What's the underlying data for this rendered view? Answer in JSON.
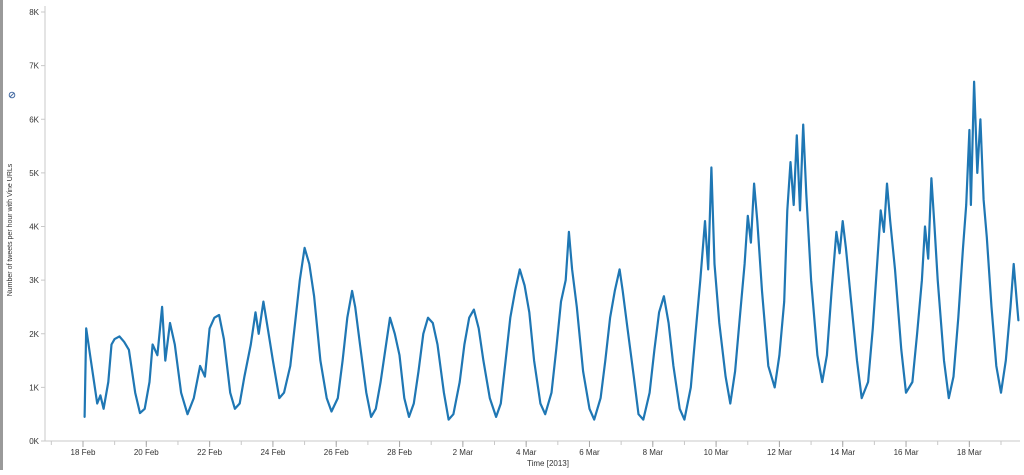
{
  "chart_data": {
    "type": "line",
    "xlabel": "Time [2013]",
    "ylabel": "Number of tweets per hour with Vine URLs",
    "ylim": [
      0,
      8000
    ],
    "y_ticks": [
      {
        "value": 0,
        "label": "0K"
      },
      {
        "value": 1000,
        "label": "1K"
      },
      {
        "value": 2000,
        "label": "2K"
      },
      {
        "value": 3000,
        "label": "3K"
      },
      {
        "value": 4000,
        "label": "4K"
      },
      {
        "value": 5000,
        "label": "5K"
      },
      {
        "value": 6000,
        "label": "6K"
      },
      {
        "value": 7000,
        "label": "7K"
      },
      {
        "value": 8000,
        "label": "8K"
      }
    ],
    "xlim_days": [
      -1.2,
      29.6
    ],
    "x_ticks": [
      {
        "day": 0,
        "label": "18 Feb"
      },
      {
        "day": 2,
        "label": "20 Feb"
      },
      {
        "day": 4,
        "label": "22 Feb"
      },
      {
        "day": 6,
        "label": "24 Feb"
      },
      {
        "day": 8,
        "label": "26 Feb"
      },
      {
        "day": 10,
        "label": "28 Feb"
      },
      {
        "day": 12,
        "label": "2 Mar"
      },
      {
        "day": 14,
        "label": "4 Mar"
      },
      {
        "day": 16,
        "label": "6 Mar"
      },
      {
        "day": 18,
        "label": "8 Mar"
      },
      {
        "day": 20,
        "label": "10 Mar"
      },
      {
        "day": 22,
        "label": "12 Mar"
      },
      {
        "day": 24,
        "label": "14 Mar"
      },
      {
        "day": 26,
        "label": "16 Mar"
      },
      {
        "day": 28,
        "label": "18 Mar"
      }
    ],
    "series_color": "#1f77b4",
    "grid": false,
    "series": [
      {
        "points": [
          [
            0.05,
            450
          ],
          [
            0.1,
            2100
          ],
          [
            0.25,
            1500
          ],
          [
            0.45,
            700
          ],
          [
            0.55,
            850
          ],
          [
            0.65,
            600
          ],
          [
            0.8,
            1100
          ],
          [
            0.9,
            1800
          ],
          [
            1.0,
            1900
          ],
          [
            1.15,
            1950
          ],
          [
            1.3,
            1850
          ],
          [
            1.45,
            1700
          ],
          [
            1.65,
            900
          ],
          [
            1.8,
            520
          ],
          [
            1.95,
            600
          ],
          [
            2.1,
            1100
          ],
          [
            2.2,
            1800
          ],
          [
            2.35,
            1600
          ],
          [
            2.5,
            2500
          ],
          [
            2.6,
            1500
          ],
          [
            2.75,
            2200
          ],
          [
            2.9,
            1800
          ],
          [
            3.1,
            900
          ],
          [
            3.3,
            500
          ],
          [
            3.5,
            800
          ],
          [
            3.7,
            1400
          ],
          [
            3.85,
            1200
          ],
          [
            4.0,
            2100
          ],
          [
            4.15,
            2300
          ],
          [
            4.3,
            2350
          ],
          [
            4.45,
            1900
          ],
          [
            4.65,
            900
          ],
          [
            4.8,
            600
          ],
          [
            4.95,
            700
          ],
          [
            5.1,
            1200
          ],
          [
            5.3,
            1800
          ],
          [
            5.45,
            2400
          ],
          [
            5.55,
            2000
          ],
          [
            5.7,
            2600
          ],
          [
            5.85,
            2050
          ],
          [
            6.0,
            1500
          ],
          [
            6.2,
            800
          ],
          [
            6.35,
            900
          ],
          [
            6.55,
            1400
          ],
          [
            6.7,
            2200
          ],
          [
            6.85,
            3000
          ],
          [
            7.0,
            3600
          ],
          [
            7.15,
            3300
          ],
          [
            7.3,
            2700
          ],
          [
            7.5,
            1500
          ],
          [
            7.7,
            800
          ],
          [
            7.85,
            550
          ],
          [
            8.05,
            800
          ],
          [
            8.2,
            1500
          ],
          [
            8.35,
            2300
          ],
          [
            8.5,
            2800
          ],
          [
            8.6,
            2500
          ],
          [
            8.75,
            1800
          ],
          [
            8.95,
            900
          ],
          [
            9.1,
            450
          ],
          [
            9.25,
            600
          ],
          [
            9.4,
            1100
          ],
          [
            9.55,
            1700
          ],
          [
            9.7,
            2300
          ],
          [
            9.85,
            2000
          ],
          [
            10.0,
            1600
          ],
          [
            10.15,
            800
          ],
          [
            10.3,
            450
          ],
          [
            10.45,
            700
          ],
          [
            10.6,
            1300
          ],
          [
            10.75,
            2000
          ],
          [
            10.9,
            2300
          ],
          [
            11.05,
            2200
          ],
          [
            11.2,
            1800
          ],
          [
            11.4,
            900
          ],
          [
            11.55,
            400
          ],
          [
            11.7,
            500
          ],
          [
            11.9,
            1100
          ],
          [
            12.05,
            1800
          ],
          [
            12.2,
            2300
          ],
          [
            12.35,
            2450
          ],
          [
            12.5,
            2100
          ],
          [
            12.65,
            1500
          ],
          [
            12.85,
            800
          ],
          [
            13.05,
            450
          ],
          [
            13.2,
            700
          ],
          [
            13.35,
            1500
          ],
          [
            13.5,
            2300
          ],
          [
            13.65,
            2800
          ],
          [
            13.8,
            3200
          ],
          [
            13.95,
            2900
          ],
          [
            14.1,
            2400
          ],
          [
            14.25,
            1500
          ],
          [
            14.45,
            700
          ],
          [
            14.6,
            500
          ],
          [
            14.8,
            900
          ],
          [
            14.95,
            1700
          ],
          [
            15.1,
            2600
          ],
          [
            15.25,
            3000
          ],
          [
            15.35,
            3900
          ],
          [
            15.45,
            3200
          ],
          [
            15.6,
            2500
          ],
          [
            15.8,
            1300
          ],
          [
            16.0,
            600
          ],
          [
            16.15,
            400
          ],
          [
            16.35,
            800
          ],
          [
            16.5,
            1500
          ],
          [
            16.65,
            2300
          ],
          [
            16.8,
            2800
          ],
          [
            16.95,
            3200
          ],
          [
            17.05,
            2800
          ],
          [
            17.2,
            2100
          ],
          [
            17.4,
            1200
          ],
          [
            17.55,
            500
          ],
          [
            17.7,
            400
          ],
          [
            17.9,
            900
          ],
          [
            18.05,
            1700
          ],
          [
            18.2,
            2400
          ],
          [
            18.35,
            2700
          ],
          [
            18.5,
            2200
          ],
          [
            18.65,
            1400
          ],
          [
            18.85,
            600
          ],
          [
            19.0,
            400
          ],
          [
            19.2,
            1000
          ],
          [
            19.35,
            2000
          ],
          [
            19.5,
            3000
          ],
          [
            19.65,
            4100
          ],
          [
            19.75,
            3200
          ],
          [
            19.85,
            5100
          ],
          [
            19.95,
            3300
          ],
          [
            20.1,
            2200
          ],
          [
            20.3,
            1200
          ],
          [
            20.45,
            700
          ],
          [
            20.6,
            1300
          ],
          [
            20.75,
            2300
          ],
          [
            20.9,
            3300
          ],
          [
            21.0,
            4200
          ],
          [
            21.1,
            3700
          ],
          [
            21.2,
            4800
          ],
          [
            21.3,
            4100
          ],
          [
            21.45,
            2800
          ],
          [
            21.65,
            1400
          ],
          [
            21.85,
            1000
          ],
          [
            22.0,
            1600
          ],
          [
            22.15,
            2600
          ],
          [
            22.25,
            4300
          ],
          [
            22.35,
            5200
          ],
          [
            22.45,
            4400
          ],
          [
            22.55,
            5700
          ],
          [
            22.65,
            4300
          ],
          [
            22.75,
            5900
          ],
          [
            22.85,
            4600
          ],
          [
            23.0,
            3000
          ],
          [
            23.2,
            1600
          ],
          [
            23.35,
            1100
          ],
          [
            23.5,
            1600
          ],
          [
            23.65,
            2800
          ],
          [
            23.8,
            3900
          ],
          [
            23.9,
            3500
          ],
          [
            24.0,
            4100
          ],
          [
            24.1,
            3600
          ],
          [
            24.25,
            2700
          ],
          [
            24.45,
            1500
          ],
          [
            24.6,
            800
          ],
          [
            24.8,
            1100
          ],
          [
            24.95,
            2100
          ],
          [
            25.1,
            3400
          ],
          [
            25.2,
            4300
          ],
          [
            25.3,
            3900
          ],
          [
            25.4,
            4800
          ],
          [
            25.5,
            4100
          ],
          [
            25.65,
            3200
          ],
          [
            25.85,
            1700
          ],
          [
            26.0,
            900
          ],
          [
            26.2,
            1100
          ],
          [
            26.35,
            2000
          ],
          [
            26.5,
            3000
          ],
          [
            26.6,
            4000
          ],
          [
            26.7,
            3400
          ],
          [
            26.8,
            4900
          ],
          [
            26.9,
            4000
          ],
          [
            27.0,
            3000
          ],
          [
            27.2,
            1500
          ],
          [
            27.35,
            800
          ],
          [
            27.5,
            1200
          ],
          [
            27.65,
            2300
          ],
          [
            27.8,
            3600
          ],
          [
            27.9,
            4400
          ],
          [
            28.0,
            5800
          ],
          [
            28.05,
            4400
          ],
          [
            28.15,
            6700
          ],
          [
            28.25,
            5000
          ],
          [
            28.35,
            6000
          ],
          [
            28.45,
            4500
          ],
          [
            28.55,
            3800
          ],
          [
            28.7,
            2500
          ],
          [
            28.85,
            1400
          ],
          [
            29.0,
            900
          ],
          [
            29.15,
            1500
          ],
          [
            29.3,
            2500
          ],
          [
            29.4,
            3300
          ],
          [
            29.5,
            2600
          ],
          [
            29.55,
            2250
          ]
        ]
      }
    ]
  }
}
